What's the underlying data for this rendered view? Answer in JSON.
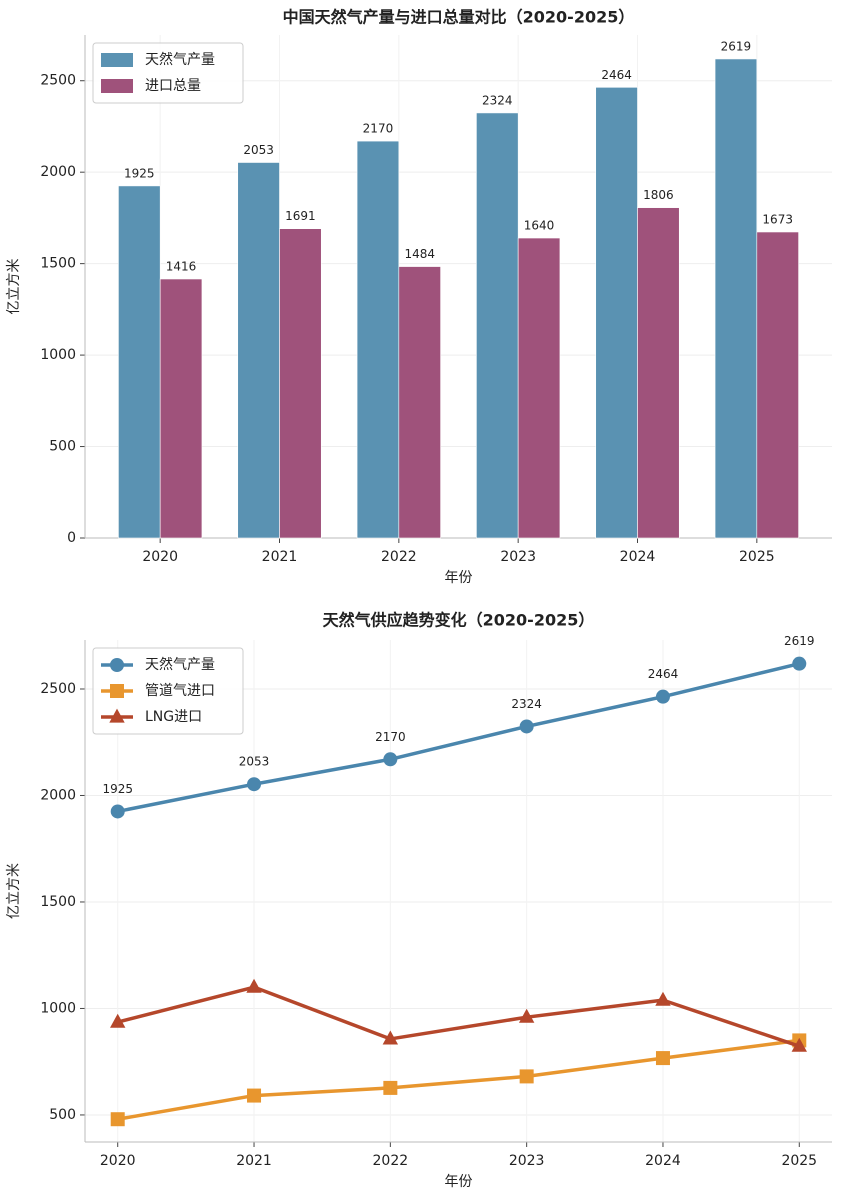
{
  "chart_data": [
    {
      "type": "bar",
      "title": "中国天然气产量与进口总量对比（2020-2025）",
      "x_label": "年份",
      "y_label": "亿立方米",
      "categories": [
        "2020",
        "2021",
        "2022",
        "2023",
        "2024",
        "2025"
      ],
      "series": [
        {
          "name": "天然气产量",
          "color": "#5a92b2",
          "values": [
            1925,
            2053,
            2170,
            2324,
            2464,
            2619
          ]
        },
        {
          "name": "进口总量",
          "color": "#9f527b",
          "values": [
            1416,
            1691,
            1484,
            1640,
            1806,
            1673
          ]
        }
      ],
      "ylim": [
        0,
        2750
      ],
      "yticks": [
        0,
        500,
        1000,
        1500,
        2000,
        2500
      ],
      "grid": true,
      "legend": "upper left",
      "data_labels": true
    },
    {
      "type": "line",
      "title": "天然气供应趋势变化（2020-2025）",
      "x_label": "年份",
      "y_label": "亿立方米",
      "categories": [
        "2020",
        "2021",
        "2022",
        "2023",
        "2024",
        "2025"
      ],
      "series": [
        {
          "name": "天然气产量",
          "color": "#4a86ad",
          "marker": "circle",
          "data_labels": true,
          "values": [
            1925,
            2053,
            2170,
            2324,
            2464,
            2619
          ]
        },
        {
          "name": "管道气进口",
          "color": "#e8962e",
          "marker": "square",
          "values": [
            480,
            591,
            627,
            681,
            767,
            850
          ]
        },
        {
          "name": "LNG进口",
          "color": "#b5472b",
          "marker": "triangle",
          "values": [
            936,
            1100,
            857,
            959,
            1039,
            823
          ]
        }
      ],
      "ylim": [
        373,
        2730
      ],
      "yticks": [
        500,
        1000,
        1500,
        2000,
        2500
      ],
      "grid": true,
      "legend": "upper left"
    }
  ]
}
